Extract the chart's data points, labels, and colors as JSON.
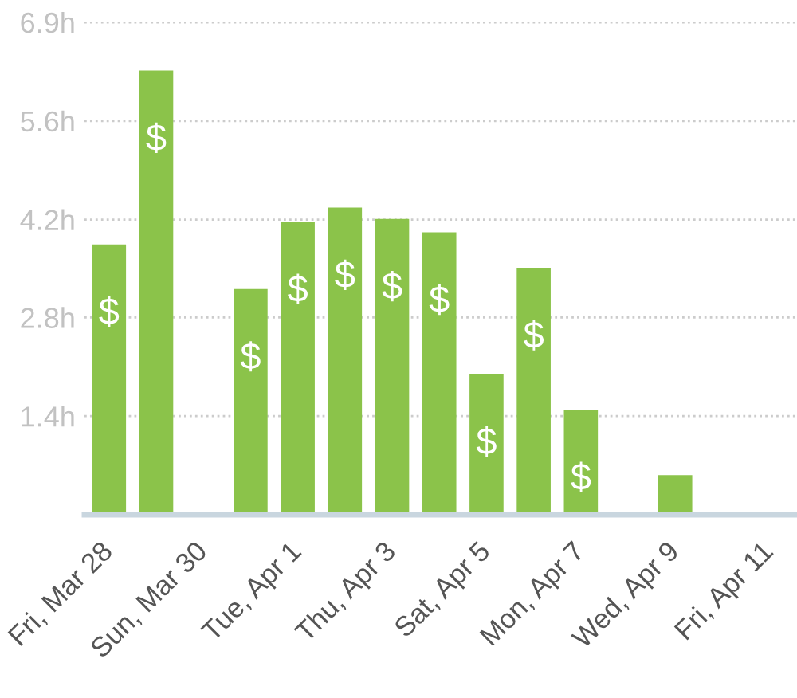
{
  "chart_data": {
    "type": "bar",
    "categories": [
      "Fri, Mar 28",
      null,
      "Sun, Mar 30",
      null,
      "Tue, Apr 1",
      null,
      "Thu, Apr 3",
      null,
      "Sat, Apr 5",
      null,
      "Mon, Apr 7",
      null,
      "Wed, Apr 9",
      null,
      "Fri, Apr 11"
    ],
    "values": [
      3.81,
      6.26,
      0,
      3.18,
      4.13,
      4.33,
      4.17,
      3.98,
      1.98,
      3.48,
      1.48,
      0,
      0.56,
      0,
      0
    ],
    "color": "#8bc34a",
    "value_labels": [
      "$",
      "$",
      null,
      "$",
      "$",
      "$",
      "$",
      "$",
      "$",
      "$",
      "$",
      null,
      null,
      null,
      null
    ],
    "ylim": [
      0,
      6.94
    ],
    "yticks": [
      {
        "value": 1.39,
        "label": "1.4h"
      },
      {
        "value": 2.78,
        "label": "2.8h"
      },
      {
        "value": 4.16,
        "label": "4.2h"
      },
      {
        "value": 5.55,
        "label": "5.6h"
      },
      {
        "value": 6.94,
        "label": "6.9h"
      }
    ],
    "grid": "y"
  }
}
